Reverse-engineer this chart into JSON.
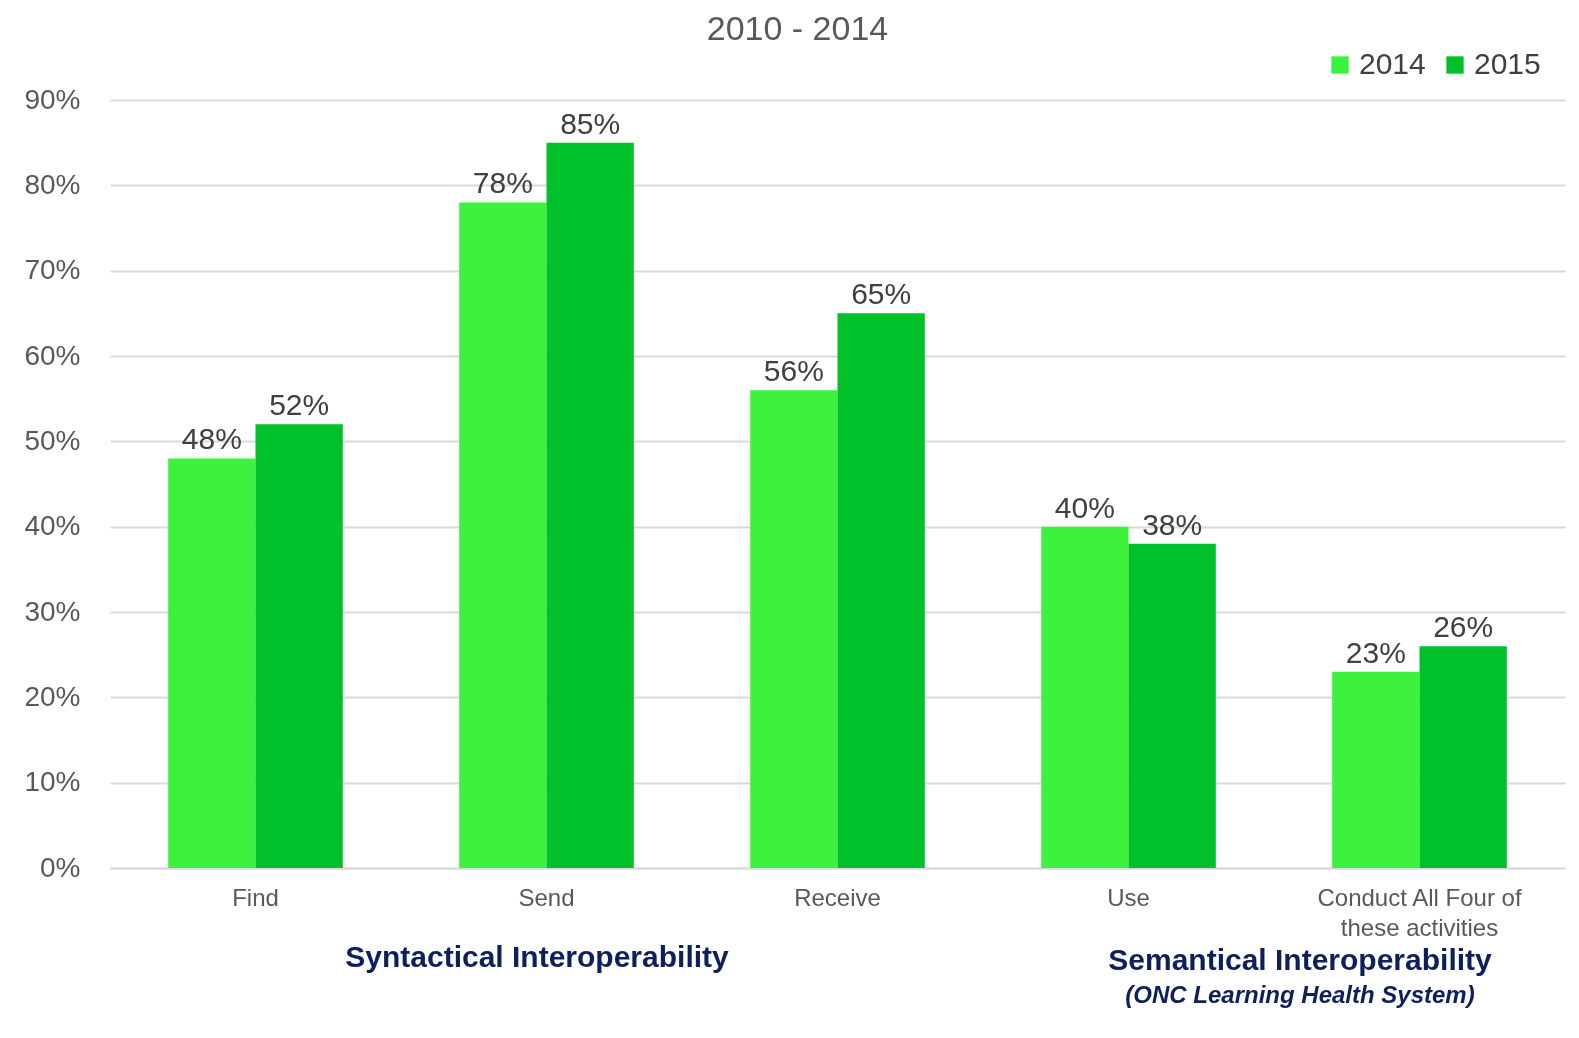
{
  "chart_data": {
    "type": "bar",
    "title": "2010 - 2014",
    "categories": [
      "Find",
      "Send",
      "Receive",
      "Use",
      "Conduct All Four of\nthese activities"
    ],
    "series": [
      {
        "name": "2014",
        "color": "#3df23d",
        "values": [
          48,
          78,
          56,
          40,
          23
        ],
        "value_labels": [
          "48%",
          "78%",
          "56%",
          "40%",
          "23%"
        ]
      },
      {
        "name": "2015",
        "color": "#00c12a",
        "values": [
          52,
          85,
          65,
          38,
          26
        ],
        "value_labels": [
          "52%",
          "85%",
          "65%",
          "38%",
          "26%"
        ]
      }
    ],
    "ylim": [
      0,
      90
    ],
    "yticks": [
      {
        "value": 0,
        "label": "0%"
      },
      {
        "value": 10,
        "label": "10%"
      },
      {
        "value": 20,
        "label": "20%"
      },
      {
        "value": 30,
        "label": "30%"
      },
      {
        "value": 40,
        "label": "40%"
      },
      {
        "value": 50,
        "label": "50%"
      },
      {
        "value": 60,
        "label": "60%"
      },
      {
        "value": 70,
        "label": "70%"
      },
      {
        "value": 80,
        "label": "80%"
      },
      {
        "value": 90,
        "label": "90%"
      }
    ],
    "grid": "y",
    "legend": "top right",
    "annotations": [
      "Syntactical Interoperability",
      "Semantical Interoperability",
      "(ONC Learning Health System)"
    ]
  }
}
